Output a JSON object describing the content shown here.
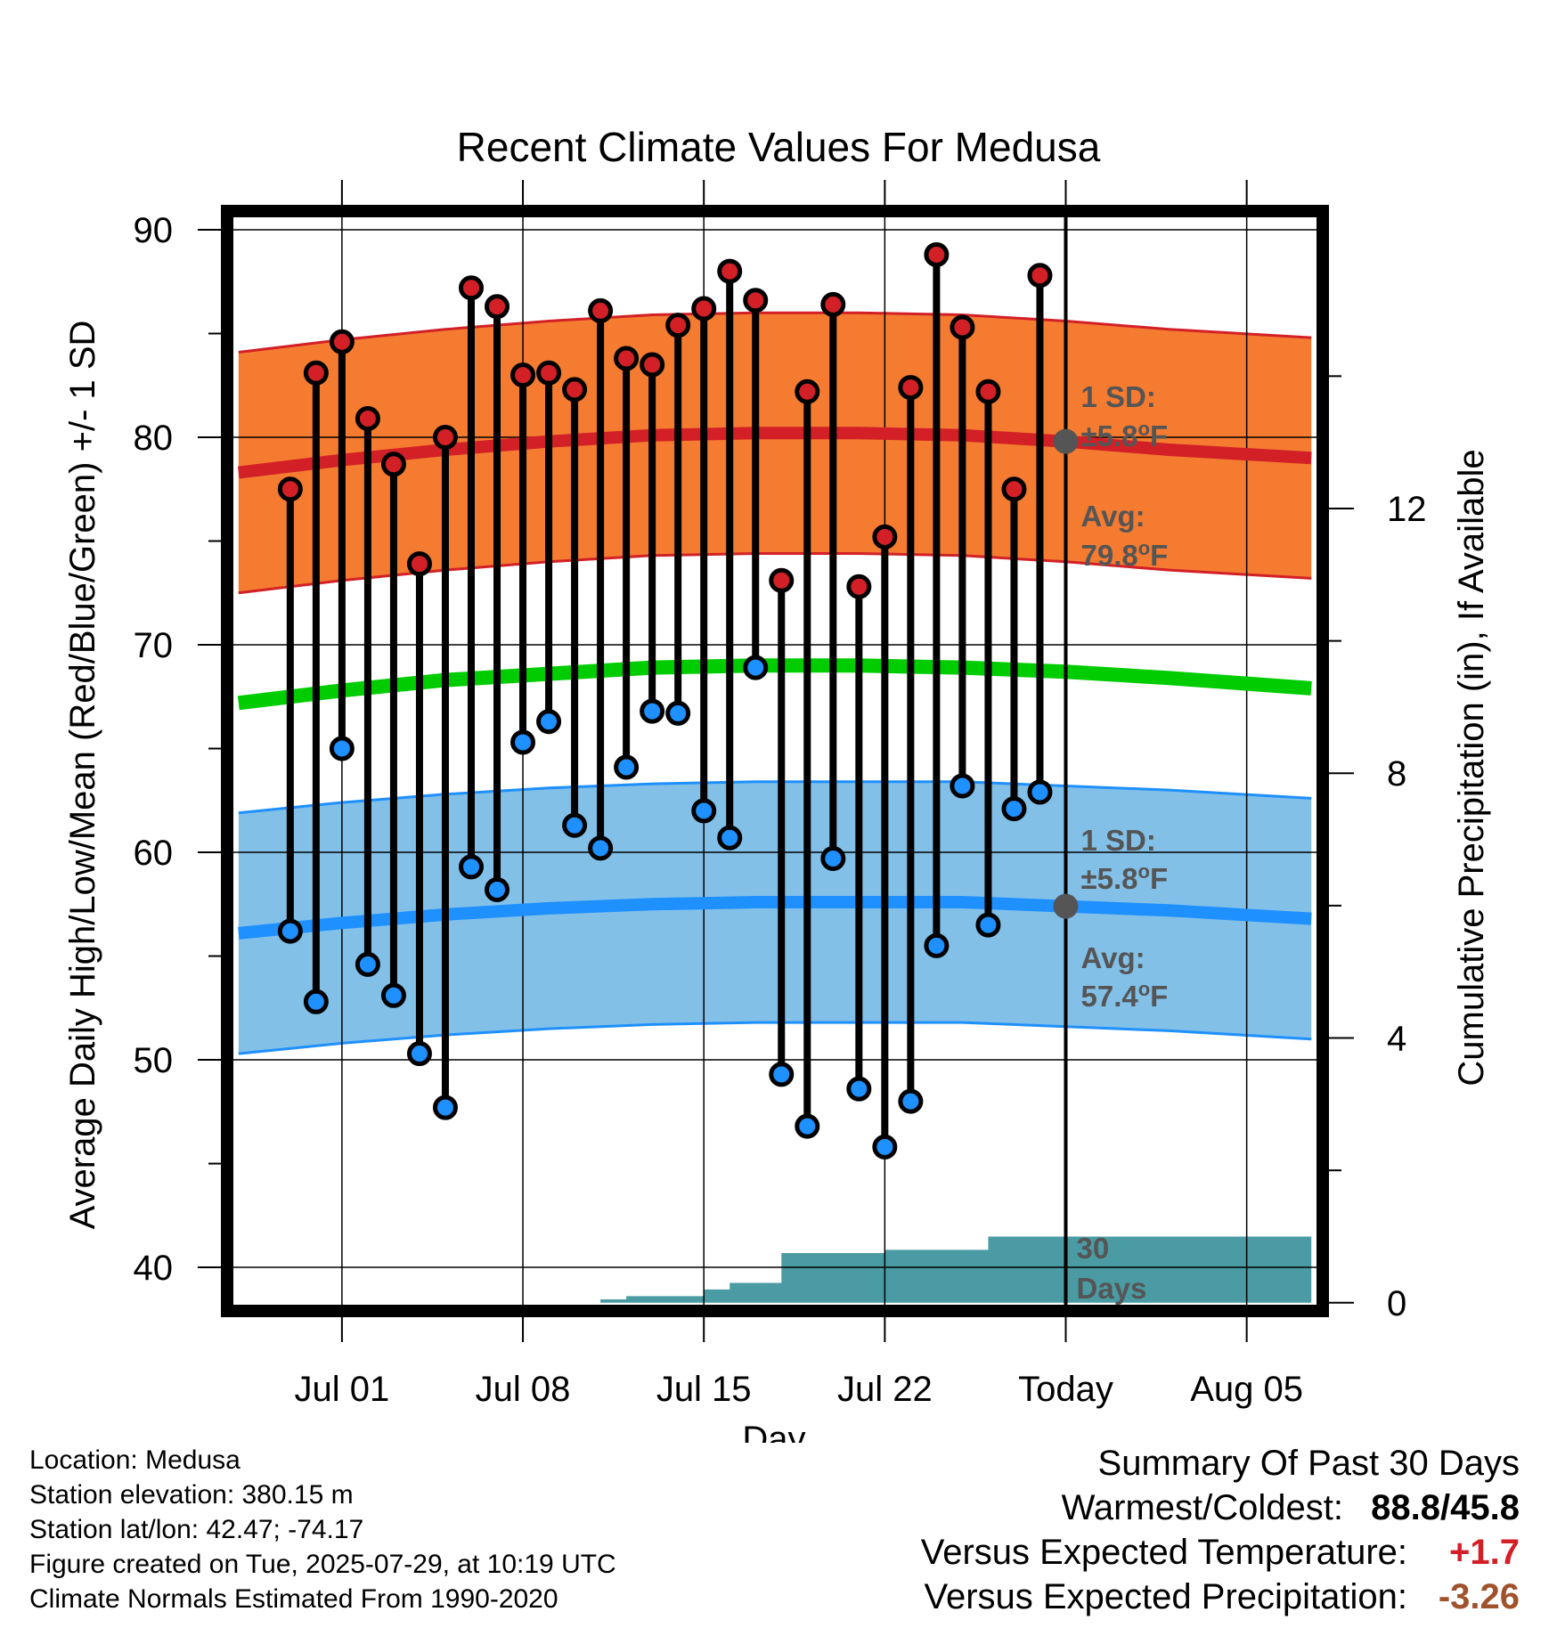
{
  "title": "Recent Climate Values For Medusa",
  "chart_data": {
    "type": "line",
    "title": "Recent Climate Values For Medusa",
    "xlabel": "Day",
    "ylabel": "Average Daily High/Low/Mean (Red/Blue/Green) +/- 1 SD",
    "y2label": "Cumulative Precipitation (in), If Available",
    "ylim": [
      38.2,
      90.6
    ],
    "y2lim": [
      -0.03,
      16.4
    ],
    "x_ticks": [
      "Jul 01",
      "Jul 08",
      "Jul 15",
      "Jul 22",
      "Today",
      "Aug 05"
    ],
    "y_ticks": [
      "40",
      "50",
      "60",
      "70",
      "80",
      "90"
    ],
    "y2_ticks": [
      "0",
      "4",
      "8",
      "12"
    ],
    "x_range_days": [
      -32.2,
      9.7
    ],
    "x_tick_days": [
      -28,
      -21,
      -14,
      -7,
      0,
      7
    ],
    "days": [
      -30,
      -29,
      -28,
      -27,
      -26,
      -25,
      -24,
      -23,
      -22,
      -21,
      -20,
      -19,
      -18,
      -17,
      -16,
      -15,
      -14,
      -13,
      -12,
      -11,
      -10,
      -9,
      -8,
      -7,
      -6,
      -5,
      -4,
      -3,
      -2,
      -1
    ],
    "highs": [
      77.5,
      83.1,
      84.6,
      80.9,
      78.7,
      73.9,
      80.0,
      87.2,
      86.3,
      83.0,
      83.1,
      82.3,
      86.1,
      83.8,
      83.5,
      85.4,
      86.2,
      88.0,
      86.6,
      73.1,
      82.2,
      86.4,
      72.8,
      75.2,
      82.4,
      88.8,
      85.3,
      82.2,
      77.5,
      87.8
    ],
    "lows": [
      56.2,
      52.8,
      65.0,
      54.6,
      53.1,
      50.3,
      47.7,
      59.3,
      58.2,
      65.3,
      66.3,
      61.3,
      60.2,
      64.1,
      66.8,
      66.7,
      62.0,
      60.7,
      68.9,
      49.3,
      46.8,
      59.7,
      48.6,
      45.8,
      48.0,
      55.5,
      63.2,
      56.5,
      62.1,
      62.9
    ],
    "normal_high": {
      "days": [
        -32,
        -28,
        -24,
        -20,
        -16,
        -12,
        -8,
        -4,
        0,
        4,
        9.5
      ],
      "mean": [
        78.3,
        78.9,
        79.4,
        79.8,
        80.1,
        80.2,
        80.2,
        80.1,
        79.8,
        79.4,
        79.0
      ],
      "sd": 5.8
    },
    "normal_low": {
      "days": [
        -32,
        -28,
        -24,
        -20,
        -16,
        -12,
        -8,
        -4,
        0,
        4,
        9.5
      ],
      "mean": [
        56.1,
        56.6,
        57.0,
        57.3,
        57.5,
        57.6,
        57.6,
        57.6,
        57.4,
        57.2,
        56.8
      ],
      "sd": 5.8
    },
    "normal_mean": {
      "days": [
        -32,
        -28,
        -24,
        -20,
        -16,
        -12,
        -8,
        -4,
        0,
        4,
        9.5
      ],
      "values": [
        67.2,
        67.8,
        68.3,
        68.6,
        68.9,
        69.0,
        69.0,
        68.9,
        68.7,
        68.4,
        67.9
      ]
    },
    "precip_cumulative": {
      "days": [
        -31.5,
        -20,
        -18,
        -17,
        -16,
        -14,
        -13,
        -12,
        -11,
        -10,
        -9,
        -8,
        -7,
        -6,
        -5,
        -4,
        -3,
        -2,
        -1,
        0,
        9.5
      ],
      "values": [
        0.0,
        0.0,
        0.05,
        0.1,
        0.1,
        0.2,
        0.3,
        0.3,
        0.75,
        0.75,
        0.75,
        0.75,
        0.8,
        0.8,
        0.8,
        0.8,
        1.0,
        1.0,
        1.0,
        1.0,
        1.05
      ]
    },
    "annotations": {
      "high_sd_line1": "1 SD:",
      "high_sd_line2": "±5.8",
      "high_avg_line1": "Avg:",
      "high_avg_line2": "79.8",
      "low_sd_line1": "1 SD:",
      "low_sd_line2": "±5.8",
      "low_avg_line1": "Avg:",
      "low_avg_line2": "57.4",
      "unit_sup": "o",
      "unit": "F",
      "today_marker_line1": "30",
      "today_marker_line2": "Days"
    },
    "today_markers": {
      "high_avg": 79.8,
      "low_avg": 57.4
    },
    "colors": {
      "high_band": "#f47b30",
      "high_line": "#d32027",
      "low_band": "#82c0e8",
      "low_line": "#1e90ff",
      "mean_line": "#00cc00",
      "precip": "#4a9ba3",
      "high_dot": "#d32027",
      "low_dot": "#1e90ff",
      "today_marker": "#555555"
    }
  },
  "footer": {
    "location": "Location: Medusa",
    "elevation": "Station elevation: 380.15 m",
    "latlon": "Station lat/lon: 42.47; -74.17",
    "created": "Figure created on Tue, 2025-07-29, at 10:19 UTC",
    "normals": "Climate Normals Estimated From 1990-2020"
  },
  "summary": {
    "heading": "Summary Of Past 30 Days",
    "warmest_label": "Warmest/Coldest:",
    "warmest_value": "88.8",
    "slash": "/",
    "coldest_value": "45.8",
    "temp_label": "Versus Expected Temperature:",
    "temp_value": "+1.7",
    "temp_color": "#d32027",
    "precip_label": "Versus Expected Precipitation:",
    "precip_value": "-3.26",
    "precip_color": "#a0522d"
  }
}
